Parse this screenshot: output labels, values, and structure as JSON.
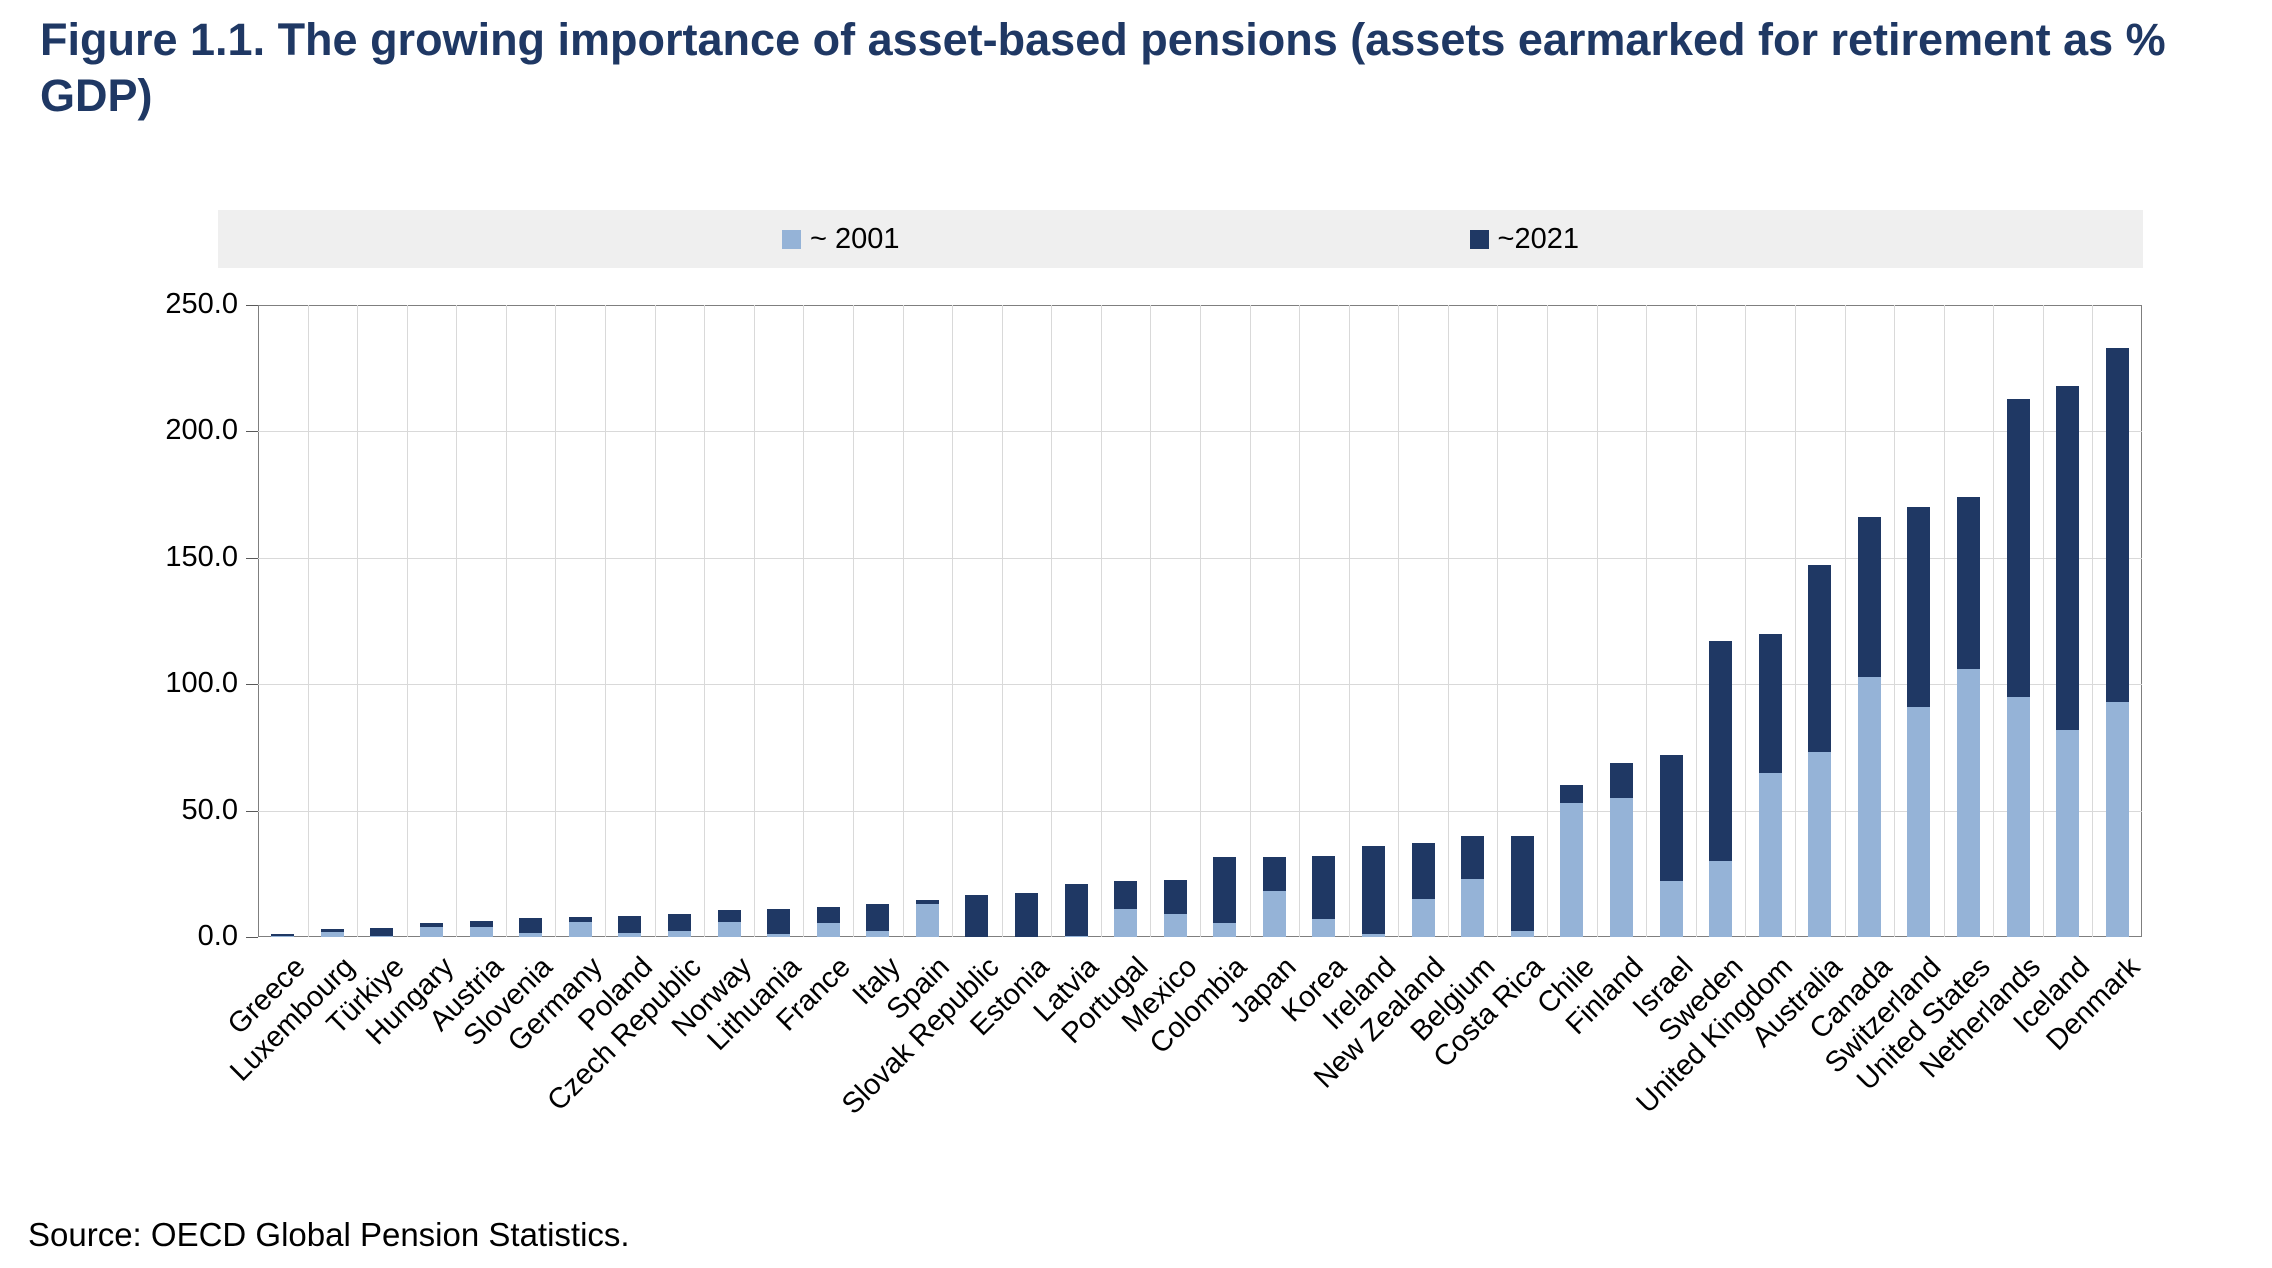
{
  "title": "Figure 1.1. The growing importance of asset-based pensions (assets earmarked for retirement as % GDP)",
  "source": "Source: OECD Global Pension Statistics.",
  "legend": [
    {
      "label": "~ 2001",
      "color": "#95b3d7"
    },
    {
      "label": "~2021",
      "color": "#1f3864"
    }
  ],
  "chart_data": {
    "type": "bar",
    "title": "Figure 1.1. The growing importance of asset-based pensions (assets earmarked for retirement as % GDP)",
    "xlabel": "",
    "ylabel": "",
    "ylim": [
      0,
      250
    ],
    "yticks": [
      0,
      50,
      100,
      150,
      200,
      250
    ],
    "ytick_labels": [
      "0.0",
      "50.0",
      "100.0",
      "150.0",
      "200.0",
      "250.0"
    ],
    "grid": true,
    "legend_position": "top",
    "bar_style": "overlapped (2001 bar drawn in front of taller 2021 bar)",
    "categories": [
      "Greece",
      "Luxembourg",
      "Türkiye",
      "Hungary",
      "Austria",
      "Slovenia",
      "Germany",
      "Poland",
      "Czech Republic",
      "Norway",
      "Lithuania",
      "France",
      "Italy",
      "Spain",
      "Slovak Republic",
      "Estonia",
      "Latvia",
      "Portugal",
      "Mexico",
      "Colombia",
      "Japan",
      "Korea",
      "Ireland",
      "New Zealand",
      "Belgium",
      "Costa Rica",
      "Chile",
      "Finland",
      "Israel",
      "Sweden",
      "United Kingdom",
      "Australia",
      "Canada",
      "Switzerland",
      "United States",
      "Netherlands",
      "Iceland",
      "Denmark"
    ],
    "series": [
      {
        "name": "~ 2001",
        "color": "#95b3d7",
        "values": [
          0.5,
          2,
          0.5,
          4,
          4,
          1.5,
          6,
          1.5,
          2.5,
          6,
          1,
          5.5,
          2.5,
          13,
          0,
          0,
          0.5,
          11,
          9,
          5.5,
          18,
          7,
          1,
          15,
          23,
          2.5,
          53,
          55,
          22,
          30,
          65,
          73,
          103,
          91,
          106,
          95,
          82,
          93
        ]
      },
      {
        "name": "~2021",
        "color": "#1f3864",
        "values": [
          1,
          3,
          3.5,
          5.5,
          6.5,
          7.5,
          8,
          8.5,
          9,
          10.5,
          11,
          12,
          13,
          14.5,
          16.5,
          17.5,
          21,
          22,
          22.5,
          31.5,
          31.5,
          32,
          36,
          37,
          40,
          40,
          60,
          69,
          72,
          117,
          120,
          147,
          166,
          170,
          174,
          213,
          218,
          233
        ]
      }
    ]
  }
}
